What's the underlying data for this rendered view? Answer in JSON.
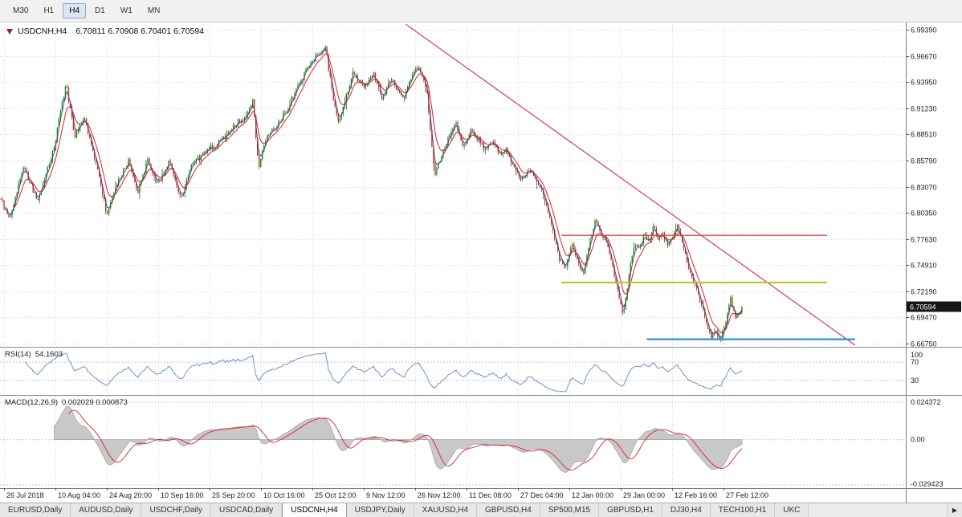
{
  "toolbar": {
    "timeframes": [
      {
        "label": "M30",
        "active": false
      },
      {
        "label": "H1",
        "active": false
      },
      {
        "label": "H4",
        "active": true
      },
      {
        "label": "D1",
        "active": false
      },
      {
        "label": "W1",
        "active": false
      },
      {
        "label": "MN",
        "active": false
      }
    ]
  },
  "chart": {
    "symbol_title": "USDCNH,H4",
    "ohlc_text": "6.70811 6.70908 6.70401 6.70594",
    "price_tag": "6.70594",
    "price_axis_labels": [
      "6.99390",
      "6.96670",
      "6.93950",
      "6.91230",
      "6.88510",
      "6.85790",
      "6.83070",
      "6.80350",
      "6.77630",
      "6.74910",
      "6.72190",
      "6.69470",
      "6.66750"
    ],
    "date_axis_labels": [
      "26 Jul 2018",
      "10 Aug 04:00",
      "24 Aug 20:00",
      "10 Sep 16:00",
      "25 Sep 20:00",
      "10 Oct 16:00",
      "25 Oct 12:00",
      "9 Nov 12:00",
      "26 Nov 12:00",
      "11 Dec 08:00",
      "27 Dec 04:00",
      "12 Jan 00:00",
      "29 Jan 00:00",
      "12 Feb 16:00",
      "27 Feb 12:00"
    ],
    "rsi": {
      "title": "RSI(14)",
      "value": "54.1603",
      "axis_labels": [
        "100",
        "70",
        "30"
      ]
    },
    "macd": {
      "title": "MACD(12,26,9)",
      "values": "0.002029 0.000873",
      "axis_labels": [
        "0.024372",
        "0.00",
        "-0.029423"
      ]
    }
  },
  "bottom_tabs": {
    "tabs": [
      {
        "label": "EURUSD,Daily",
        "active": false
      },
      {
        "label": "AUDUSD,Daily",
        "active": false
      },
      {
        "label": "USDCHF,Daily",
        "active": false
      },
      {
        "label": "USDCAD,Daily",
        "active": false
      },
      {
        "label": "USDCNH,H4",
        "active": true
      },
      {
        "label": "USDJPY,Daily",
        "active": false
      },
      {
        "label": "XAUUSD,H4",
        "active": false
      },
      {
        "label": "GBPUSD,H4",
        "active": false
      },
      {
        "label": "SP500,M15",
        "active": false
      },
      {
        "label": "GBPUSD,H1",
        "active": false
      },
      {
        "label": "DJ30,H4",
        "active": false
      },
      {
        "label": "TECH100,H1",
        "active": false
      },
      {
        "label": "UKC",
        "active": false
      }
    ],
    "scroll_right_icon": "▶"
  },
  "chart_data": {
    "type": "candlestick",
    "symbol": "USDCNH",
    "timeframe": "H4",
    "ohlc": {
      "open": 6.70811,
      "high": 6.70908,
      "low": 6.70401,
      "close": 6.70594
    },
    "price_range": [
      6.6675,
      6.9939
    ],
    "grid_price_step": 0.0272,
    "bars_end_frac": 0.82,
    "waypoints": [
      [
        0.0,
        6.818
      ],
      [
        0.012,
        6.795
      ],
      [
        0.03,
        6.852
      ],
      [
        0.05,
        6.816
      ],
      [
        0.072,
        6.872
      ],
      [
        0.088,
        6.938
      ],
      [
        0.1,
        6.882
      ],
      [
        0.113,
        6.902
      ],
      [
        0.128,
        6.856
      ],
      [
        0.143,
        6.802
      ],
      [
        0.158,
        6.836
      ],
      [
        0.172,
        6.858
      ],
      [
        0.184,
        6.824
      ],
      [
        0.198,
        6.858
      ],
      [
        0.212,
        6.832
      ],
      [
        0.228,
        6.86
      ],
      [
        0.243,
        6.816
      ],
      [
        0.258,
        6.854
      ],
      [
        0.278,
        6.868
      ],
      [
        0.298,
        6.878
      ],
      [
        0.318,
        6.896
      ],
      [
        0.332,
        6.904
      ],
      [
        0.34,
        6.92
      ],
      [
        0.348,
        6.852
      ],
      [
        0.358,
        6.88
      ],
      [
        0.37,
        6.892
      ],
      [
        0.384,
        6.908
      ],
      [
        0.398,
        6.93
      ],
      [
        0.412,
        6.952
      ],
      [
        0.425,
        6.966
      ],
      [
        0.438,
        6.975
      ],
      [
        0.447,
        6.93
      ],
      [
        0.455,
        6.897
      ],
      [
        0.465,
        6.923
      ],
      [
        0.475,
        6.948
      ],
      [
        0.489,
        6.934
      ],
      [
        0.503,
        6.949
      ],
      [
        0.514,
        6.924
      ],
      [
        0.528,
        6.944
      ],
      [
        0.543,
        6.92
      ],
      [
        0.555,
        6.948
      ],
      [
        0.565,
        6.954
      ],
      [
        0.575,
        6.93
      ],
      [
        0.585,
        6.843
      ],
      [
        0.595,
        6.864
      ],
      [
        0.605,
        6.884
      ],
      [
        0.614,
        6.899
      ],
      [
        0.624,
        6.871
      ],
      [
        0.634,
        6.889
      ],
      [
        0.644,
        6.879
      ],
      [
        0.654,
        6.869
      ],
      [
        0.664,
        6.879
      ],
      [
        0.672,
        6.864
      ],
      [
        0.682,
        6.869
      ],
      [
        0.692,
        6.851
      ],
      [
        0.702,
        6.838
      ],
      [
        0.712,
        6.848
      ],
      [
        0.722,
        6.84
      ],
      [
        0.734,
        6.818
      ],
      [
        0.744,
        6.79
      ],
      [
        0.754,
        6.752
      ],
      [
        0.762,
        6.748
      ],
      [
        0.77,
        6.772
      ],
      [
        0.778,
        6.756
      ],
      [
        0.786,
        6.737
      ],
      [
        0.794,
        6.772
      ],
      [
        0.802,
        6.797
      ],
      [
        0.81,
        6.782
      ],
      [
        0.818,
        6.769
      ],
      [
        0.826,
        6.748
      ],
      [
        0.834,
        6.716
      ],
      [
        0.84,
        6.696
      ],
      [
        0.848,
        6.742
      ],
      [
        0.856,
        6.772
      ],
      [
        0.862,
        6.768
      ],
      [
        0.868,
        6.78
      ],
      [
        0.874,
        6.772
      ],
      [
        0.88,
        6.79
      ],
      [
        0.887,
        6.776
      ],
      [
        0.893,
        6.782
      ],
      [
        0.9,
        6.77
      ],
      [
        0.907,
        6.782
      ],
      [
        0.913,
        6.791
      ],
      [
        0.92,
        6.772
      ],
      [
        0.928,
        6.748
      ],
      [
        0.936,
        6.73
      ],
      [
        0.944,
        6.712
      ],
      [
        0.952,
        6.69
      ],
      [
        0.959,
        6.675
      ],
      [
        0.965,
        6.683
      ],
      [
        0.971,
        6.67
      ],
      [
        0.978,
        6.69
      ],
      [
        0.985,
        6.714
      ],
      [
        0.991,
        6.696
      ],
      [
        1.0,
        6.706
      ]
    ],
    "overlays": {
      "trendline": {
        "x1_frac": 0.448,
        "price1": 6.9997,
        "x2_frac": 0.944,
        "price2": 6.6658,
        "color": "#cc3333"
      },
      "hlines": [
        {
          "price": 6.78,
          "x1_frac": 0.62,
          "x2_frac": 0.913,
          "color": "#d84040",
          "width": 1.3
        },
        {
          "price": 6.731,
          "x1_frac": 0.62,
          "x2_frac": 0.913,
          "color": "#b8c41c",
          "width": 2
        },
        {
          "price": 6.672,
          "x1_frac": 0.714,
          "x2_frac": 0.944,
          "color": "#2596d1",
          "width": 2.2
        }
      ]
    },
    "indicators": [
      {
        "name": "RSI",
        "period": 14,
        "value": 54.1603,
        "levels": [
          30,
          70
        ]
      },
      {
        "name": "MACD",
        "fast": 12,
        "slow": 26,
        "signal": 9,
        "macd_value": 0.002029,
        "signal_value": 0.000873
      }
    ],
    "macd_scale": {
      "max": 0.024372,
      "min": -0.029423
    },
    "colors": {
      "up": "#149414",
      "down": "#d22d2d",
      "wick": "#3a3a3e",
      "ma_fast": "#e02020",
      "ma_slow": "#2c3e66",
      "rsi": "#5b8ac5",
      "macd_hist": "#c8c8c8",
      "macd_hist_edge": "#989898",
      "macd_signal": "#e02222",
      "grid": "#d8d8d8",
      "axis": "#7f7f7f",
      "price_tag_bg": "#16161a"
    }
  }
}
